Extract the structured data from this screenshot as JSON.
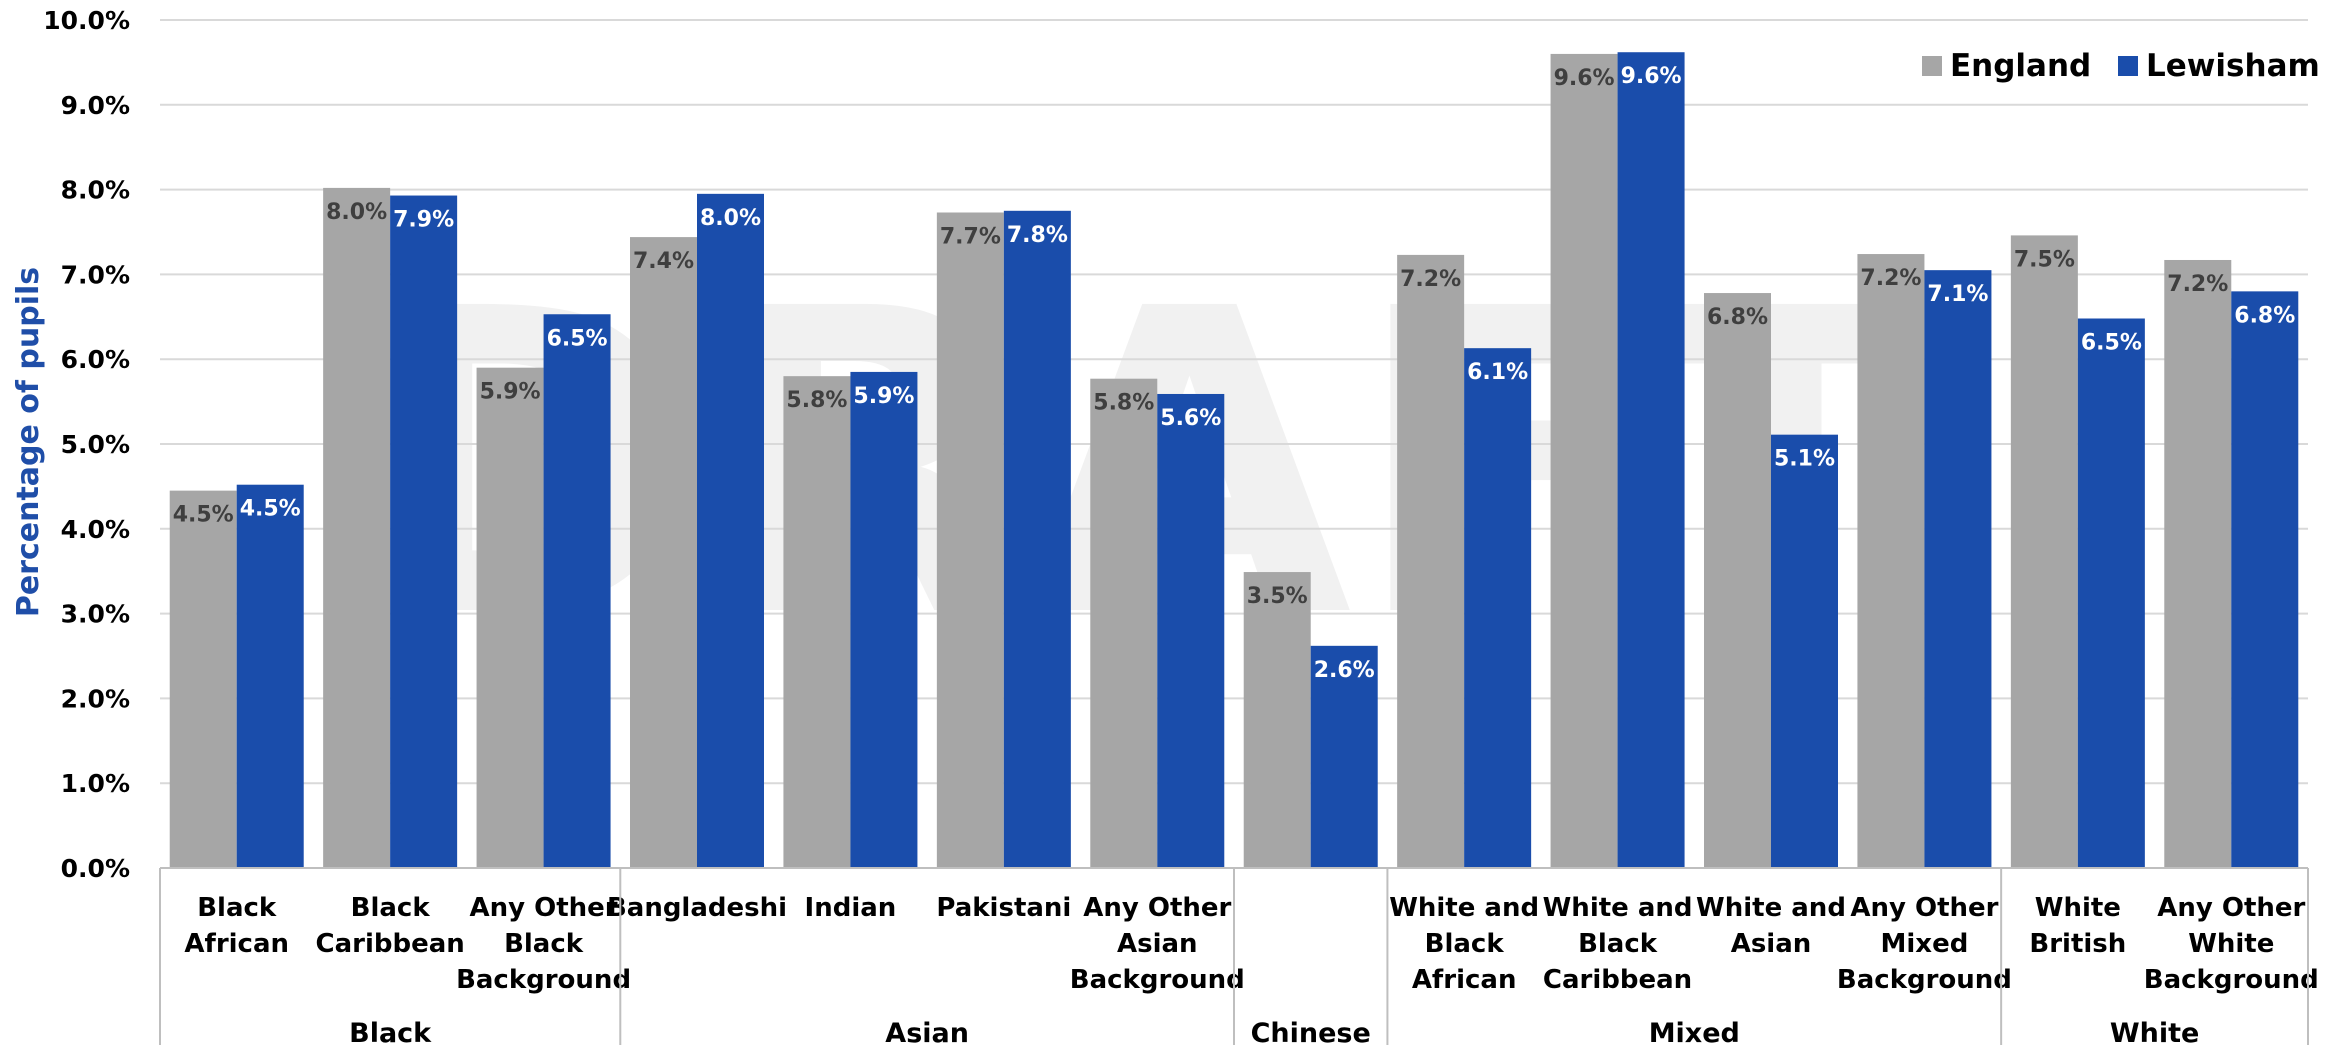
{
  "chart_data": {
    "type": "bar",
    "ylabel": "Percentage of pupils",
    "ylim": [
      0,
      10
    ],
    "y_tick_values": [
      0,
      1,
      2,
      3,
      4,
      5,
      6,
      7,
      8,
      9,
      10
    ],
    "y_tick_labels": [
      "0.0%",
      "1.0%",
      "2.0%",
      "3.0%",
      "4.0%",
      "5.0%",
      "6.0%",
      "7.0%",
      "8.0%",
      "9.0%",
      "10.0%"
    ],
    "grid": true,
    "legend_position": "top-right",
    "watermark": "DRAFT",
    "categories": [
      [
        "Black",
        "African"
      ],
      [
        "Black",
        "Caribbean"
      ],
      [
        "Any Other",
        "Black",
        "Background"
      ],
      [
        "Bangladeshi"
      ],
      [
        "Indian"
      ],
      [
        "Pakistani"
      ],
      [
        "Any Other",
        "Asian",
        "Background"
      ],
      [
        ""
      ],
      [
        "White and",
        "Black",
        "African"
      ],
      [
        "White and",
        "Black",
        "Caribbean"
      ],
      [
        "White and",
        "Asian"
      ],
      [
        "Any Other",
        "Mixed",
        "Background"
      ],
      [
        "White",
        "British"
      ],
      [
        "Any Other",
        "White",
        "Background"
      ]
    ],
    "groups": [
      {
        "label": "Black",
        "count": 3
      },
      {
        "label": "Asian",
        "count": 4
      },
      {
        "label": "Chinese",
        "count": 1
      },
      {
        "label": "Mixed",
        "count": 4
      },
      {
        "label": "White",
        "count": 2
      }
    ],
    "series": [
      {
        "name": "England",
        "color": "#a6a6a6",
        "label_color": "#3f3f3f",
        "values": [
          4.45,
          8.02,
          5.9,
          7.44,
          5.8,
          7.73,
          5.77,
          3.49,
          7.23,
          9.6,
          6.78,
          7.24,
          7.46,
          7.17
        ],
        "labels": [
          "4.5%",
          "8.0%",
          "5.9%",
          "7.4%",
          "5.8%",
          "7.7%",
          "5.8%",
          "3.5%",
          "7.2%",
          "9.6%",
          "6.8%",
          "7.2%",
          "7.5%",
          "7.2%"
        ]
      },
      {
        "name": "Lewisham",
        "color": "#1a4dab",
        "label_color": "#ffffff",
        "values": [
          4.52,
          7.93,
          6.53,
          7.95,
          5.85,
          7.75,
          5.59,
          2.62,
          6.13,
          9.62,
          5.11,
          7.05,
          6.48,
          6.8
        ],
        "labels": [
          "4.5%",
          "7.9%",
          "6.5%",
          "8.0%",
          "5.9%",
          "7.8%",
          "5.6%",
          "2.6%",
          "6.1%",
          "9.6%",
          "5.1%",
          "7.1%",
          "6.5%",
          "6.8%"
        ]
      }
    ]
  },
  "colors": {
    "ylabel": "#1f4ea8",
    "grid": "#d9d9d9",
    "axis": "#bfbfbf"
  }
}
